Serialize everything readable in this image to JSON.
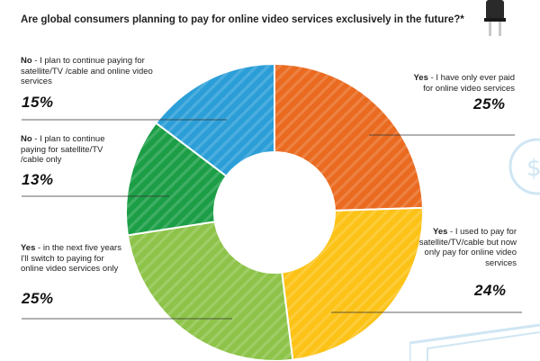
{
  "title": "Are global consumers planning to pay for online video services exclusively in the future?*",
  "colors": {
    "orange": "#ea6a1f",
    "yellow": "#fcc216",
    "light_green": "#8dc349",
    "dark_green": "#1b9e46",
    "blue": "#2b9ed8"
  },
  "labels": [
    {
      "lead": "No",
      "text": " - I plan to continue paying for satellite/TV /cable and online video services",
      "pct": "15%"
    },
    {
      "lead": "No",
      "text": " - I plan to continue paying for satellite/TV /cable only",
      "pct": "13%"
    },
    {
      "lead": "Yes",
      "text": " - in the next five years I'll switch to paying for online video services only",
      "pct": "25%"
    },
    {
      "lead": "Yes",
      "text": " - I have only ever paid for online video services",
      "pct": "25%"
    },
    {
      "lead": "Yes",
      "text": " - I used to pay for satellite/TV/cable but now only pay for online video services",
      "pct": "24%"
    }
  ],
  "chart_data": {
    "type": "pie",
    "donut": true,
    "title": "Are global consumers planning to pay for online video services exclusively in the future?*",
    "categories": [
      "Yes - I have only ever paid for online video services",
      "Yes - I used to pay for satellite/TV/cable but now only pay for online video services",
      "Yes - in the next five years I'll switch to paying for online video services only",
      "No - I plan to continue paying for satellite/TV /cable only",
      "No - I plan to continue paying for satellite/TV /cable and online video services"
    ],
    "values": [
      25,
      24,
      25,
      13,
      15
    ],
    "colors": [
      "#ea6a1f",
      "#fcc216",
      "#8dc349",
      "#1b9e46",
      "#2b9ed8"
    ],
    "legend": "none"
  }
}
